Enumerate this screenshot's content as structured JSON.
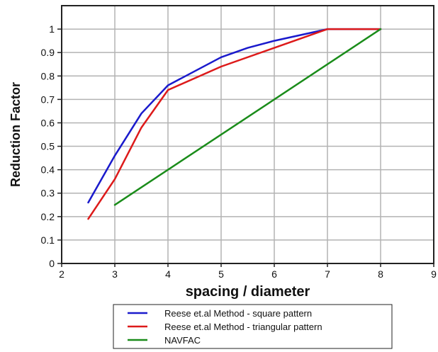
{
  "chart_data": {
    "type": "line",
    "title": "",
    "xlabel": "spacing / diameter",
    "ylabel": "Reduction Factor",
    "xlim": [
      2,
      9
    ],
    "ylim": [
      0,
      1.1
    ],
    "x_ticks": [
      2,
      3,
      4,
      5,
      6,
      7,
      8,
      9
    ],
    "y_ticks": [
      0,
      0.1,
      0.2,
      0.3,
      0.4,
      0.5,
      0.6,
      0.7,
      0.8,
      0.9,
      1
    ],
    "x_tick_labels": [
      "2",
      "3",
      "4",
      "5",
      "6",
      "7",
      "8",
      "9"
    ],
    "y_tick_labels": [
      "0",
      "0.1",
      "0.2",
      "0.3",
      "0.4",
      "0.5",
      "0.6",
      "0.7",
      "0.8",
      "0.9",
      "1"
    ],
    "grid": true,
    "legend_position": "bottom",
    "series": [
      {
        "name": "Reese et.al Method - square pattern",
        "color": "#1a1acc",
        "x": [
          2.5,
          3,
          3.5,
          4,
          5,
          5.5,
          6,
          7,
          8
        ],
        "y": [
          0.26,
          0.46,
          0.64,
          0.76,
          0.88,
          0.92,
          0.95,
          1.0,
          1.0
        ]
      },
      {
        "name": "Reese et.al Method - triangular pattern",
        "color": "#dd1a1a",
        "x": [
          2.5,
          3,
          3.5,
          4,
          5,
          6,
          7,
          8
        ],
        "y": [
          0.19,
          0.36,
          0.58,
          0.74,
          0.84,
          0.92,
          1.0,
          1.0
        ]
      },
      {
        "name": "NAVFAC",
        "color": "#1a8c1a",
        "x": [
          3,
          8
        ],
        "y": [
          0.25,
          1.0
        ]
      }
    ]
  }
}
